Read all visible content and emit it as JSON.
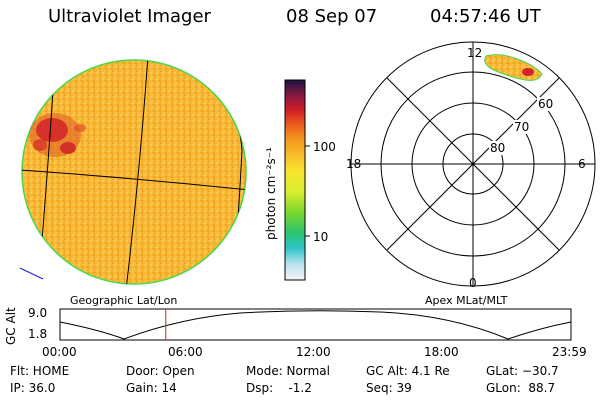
{
  "header": {
    "title": "Ultraviolet Imager",
    "date": "08 Sep 07",
    "time": "04:57:46 UT"
  },
  "colorbar": {
    "unit_label": "photon cm⁻²s⁻¹",
    "ticks": [
      "100",
      "10"
    ]
  },
  "polar_plot": {
    "mlt_labels": [
      "12",
      "18",
      "6",
      "0"
    ],
    "mlat_labels": [
      "60",
      "70",
      "80"
    ]
  },
  "map_labels": {
    "left": "Geographic Lat/Lon",
    "right": "Apex MLat/MLT"
  },
  "altitude_strip": {
    "axis_label": "GC Alt",
    "y_ticks": [
      "9.0",
      "1.8"
    ],
    "x_ticks": [
      "00:00",
      "06:00",
      "12:00",
      "18:00",
      "23:59"
    ],
    "current_time_fraction": 0.207
  },
  "footer": {
    "flt": "Flt: HOME",
    "ip": "IP: 36.0",
    "door": "Door: Open",
    "gain": "Gain: 14",
    "mode": "Mode: Normal",
    "dsp": "Dsp:    -1.2",
    "gc_alt": "GC Alt: 4.1 Re",
    "seq": "Seq: 39",
    "glat": "GLat: −30.7",
    "glon": "GLon:  88.7"
  },
  "colors": {
    "disk_fill": "#f5b62c",
    "hot_spot": "#d4232a",
    "disk_edge": "#48d848",
    "marker": "#cc2222"
  }
}
